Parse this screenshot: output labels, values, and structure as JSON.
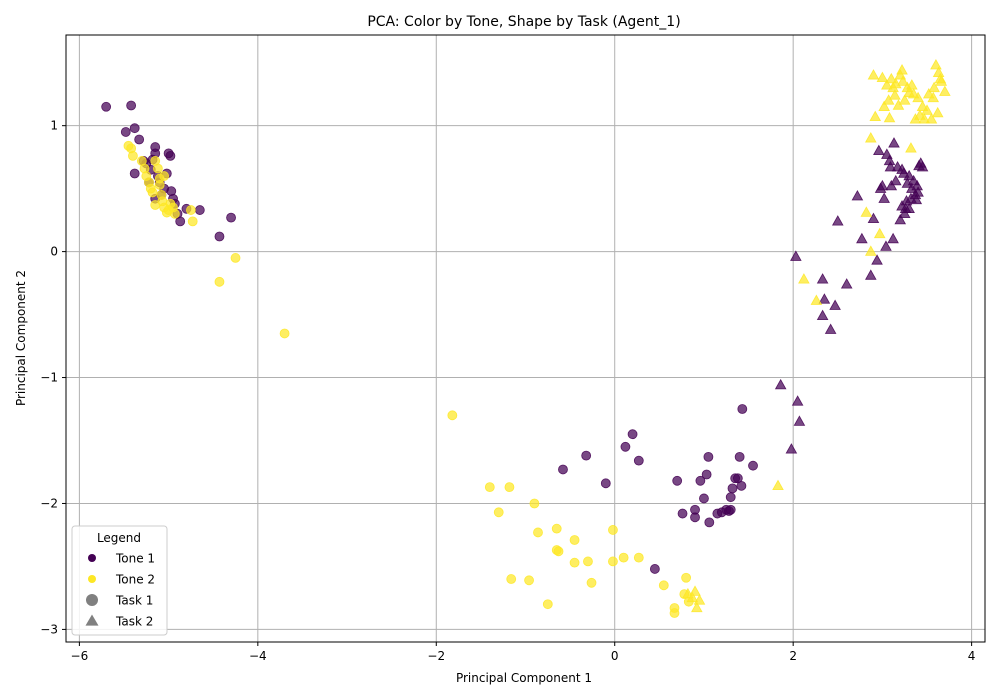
{
  "chart_data": {
    "type": "scatter",
    "title": "PCA: Color by Tone, Shape by Task (Agent_1)",
    "xlabel": "Principal Component 1",
    "ylabel": "Principal Component 2",
    "xlim": [
      -6.15,
      4.15
    ],
    "ylim": [
      -3.1,
      1.72
    ],
    "xticks": [
      -6,
      -4,
      -2,
      0,
      2,
      4
    ],
    "yticks": [
      -3,
      -2,
      -1,
      0,
      1
    ],
    "xtick_labels": [
      "−6",
      "−4",
      "−2",
      "0",
      "2",
      "4"
    ],
    "ytick_labels": [
      "−3",
      "−2",
      "−1",
      "0",
      "1"
    ],
    "grid": true,
    "legend_placement": "lower-left",
    "colors": {
      "tone1": "#440154",
      "tone2": "#fde725",
      "neutral": "#808080"
    },
    "legend": {
      "title": "Legend",
      "entries": [
        {
          "label": "Tone 1",
          "marker": "circle",
          "color": "#440154"
        },
        {
          "label": "Tone 2",
          "marker": "circle",
          "color": "#fde725"
        },
        {
          "label": "Task 1",
          "marker": "circle",
          "color": "#808080"
        },
        {
          "label": "Task 2",
          "marker": "triangle",
          "color": "#808080"
        }
      ]
    },
    "series": [
      {
        "tone": 1,
        "task": 1,
        "marker": "circle",
        "points": [
          [
            -5.7,
            1.15
          ],
          [
            -5.42,
            1.16
          ],
          [
            -5.48,
            0.95
          ],
          [
            -5.38,
            0.98
          ],
          [
            -5.33,
            0.89
          ],
          [
            -5.38,
            0.62
          ],
          [
            -5.25,
            0.7
          ],
          [
            -5.2,
            0.65
          ],
          [
            -5.15,
            0.83
          ],
          [
            -5.15,
            0.78
          ],
          [
            -5.18,
            0.73
          ],
          [
            -5.12,
            0.6
          ],
          [
            -5.1,
            0.55
          ],
          [
            -5.05,
            0.5
          ],
          [
            -5.02,
            0.62
          ],
          [
            -5.0,
            0.78
          ],
          [
            -4.98,
            0.76
          ],
          [
            -4.97,
            0.48
          ],
          [
            -4.95,
            0.42
          ],
          [
            -4.93,
            0.38
          ],
          [
            -4.9,
            0.3
          ],
          [
            -4.87,
            0.24
          ],
          [
            -4.8,
            0.34
          ],
          [
            -4.65,
            0.33
          ],
          [
            -4.43,
            0.12
          ],
          [
            -4.3,
            0.27
          ],
          [
            -5.22,
            0.55
          ],
          [
            -5.08,
            0.45
          ],
          [
            -5.15,
            0.42
          ],
          [
            -5.28,
            0.72
          ],
          [
            -0.58,
            -1.73
          ],
          [
            -0.32,
            -1.62
          ],
          [
            -0.1,
            -1.84
          ],
          [
            0.12,
            -1.55
          ],
          [
            0.2,
            -1.45
          ],
          [
            0.27,
            -1.66
          ],
          [
            0.45,
            -2.52
          ],
          [
            0.7,
            -1.82
          ],
          [
            0.76,
            -2.08
          ],
          [
            0.9,
            -2.05
          ],
          [
            0.9,
            -2.11
          ],
          [
            0.96,
            -1.82
          ],
          [
            1.0,
            -1.96
          ],
          [
            1.03,
            -1.77
          ],
          [
            1.05,
            -1.63
          ],
          [
            1.06,
            -2.15
          ],
          [
            1.15,
            -2.08
          ],
          [
            1.2,
            -2.07
          ],
          [
            1.25,
            -2.05
          ],
          [
            1.28,
            -2.06
          ],
          [
            1.3,
            -2.05
          ],
          [
            1.3,
            -1.95
          ],
          [
            1.32,
            -1.88
          ],
          [
            1.35,
            -1.8
          ],
          [
            1.38,
            -1.8
          ],
          [
            1.4,
            -1.63
          ],
          [
            1.42,
            -1.86
          ],
          [
            1.43,
            -1.25
          ],
          [
            1.55,
            -1.7
          ]
        ]
      },
      {
        "tone": 2,
        "task": 1,
        "marker": "circle",
        "points": [
          [
            -5.45,
            0.84
          ],
          [
            -5.42,
            0.82
          ],
          [
            -5.4,
            0.76
          ],
          [
            -5.3,
            0.72
          ],
          [
            -5.27,
            0.66
          ],
          [
            -5.25,
            0.6
          ],
          [
            -5.22,
            0.55
          ],
          [
            -5.2,
            0.5
          ],
          [
            -5.18,
            0.47
          ],
          [
            -5.15,
            0.72
          ],
          [
            -5.12,
            0.66
          ],
          [
            -5.1,
            0.58
          ],
          [
            -5.1,
            0.53
          ],
          [
            -5.08,
            0.45
          ],
          [
            -5.07,
            0.4
          ],
          [
            -5.05,
            0.35
          ],
          [
            -5.02,
            0.31
          ],
          [
            -5.0,
            0.33
          ],
          [
            -4.98,
            0.38
          ],
          [
            -4.95,
            0.35
          ],
          [
            -4.93,
            0.3
          ],
          [
            -5.15,
            0.37
          ],
          [
            -5.05,
            0.6
          ],
          [
            -4.75,
            0.33
          ],
          [
            -4.73,
            0.24
          ],
          [
            -4.43,
            -0.24
          ],
          [
            -4.25,
            -0.05
          ],
          [
            -3.7,
            -0.65
          ],
          [
            -1.82,
            -1.3
          ],
          [
            -1.4,
            -1.87
          ],
          [
            -1.3,
            -2.07
          ],
          [
            -1.18,
            -1.87
          ],
          [
            -1.16,
            -2.6
          ],
          [
            -0.96,
            -2.61
          ],
          [
            -0.9,
            -2.0
          ],
          [
            -0.86,
            -2.23
          ],
          [
            -0.75,
            -2.8
          ],
          [
            -0.65,
            -2.2
          ],
          [
            -0.65,
            -2.37
          ],
          [
            -0.63,
            -2.38
          ],
          [
            -0.45,
            -2.29
          ],
          [
            -0.45,
            -2.47
          ],
          [
            -0.3,
            -2.46
          ],
          [
            -0.26,
            -2.63
          ],
          [
            -0.02,
            -2.21
          ],
          [
            -0.02,
            -2.46
          ],
          [
            0.1,
            -2.43
          ],
          [
            0.27,
            -2.43
          ],
          [
            0.55,
            -2.65
          ],
          [
            0.67,
            -2.83
          ],
          [
            0.67,
            -2.87
          ],
          [
            0.8,
            -2.59
          ],
          [
            0.78,
            -2.72
          ],
          [
            0.83,
            -2.78
          ]
        ]
      },
      {
        "tone": 1,
        "task": 2,
        "marker": "triangle",
        "points": [
          [
            1.86,
            -1.06
          ],
          [
            1.98,
            -1.57
          ],
          [
            2.03,
            -0.04
          ],
          [
            2.05,
            -1.19
          ],
          [
            2.07,
            -1.35
          ],
          [
            2.33,
            -0.22
          ],
          [
            2.33,
            -0.51
          ],
          [
            2.35,
            -0.38
          ],
          [
            2.42,
            -0.62
          ],
          [
            2.47,
            -0.43
          ],
          [
            2.5,
            0.24
          ],
          [
            2.6,
            -0.26
          ],
          [
            2.72,
            0.44
          ],
          [
            2.77,
            0.1
          ],
          [
            2.87,
            -0.19
          ],
          [
            2.9,
            0.26
          ],
          [
            2.94,
            -0.07
          ],
          [
            2.96,
            0.8
          ],
          [
            2.98,
            0.5
          ],
          [
            3.0,
            0.52
          ],
          [
            3.02,
            0.42
          ],
          [
            3.04,
            0.04
          ],
          [
            3.05,
            0.77
          ],
          [
            3.08,
            0.72
          ],
          [
            3.09,
            0.67
          ],
          [
            3.1,
            0.52
          ],
          [
            3.12,
            0.1
          ],
          [
            3.13,
            0.86
          ],
          [
            3.15,
            0.56
          ],
          [
            3.17,
            0.67
          ],
          [
            3.2,
            0.25
          ],
          [
            3.22,
            0.65
          ],
          [
            3.22,
            0.36
          ],
          [
            3.24,
            0.62
          ],
          [
            3.25,
            0.3
          ],
          [
            3.26,
            0.34
          ],
          [
            3.27,
            0.4
          ],
          [
            3.28,
            0.54
          ],
          [
            3.3,
            0.6
          ],
          [
            3.3,
            0.34
          ],
          [
            3.32,
            0.42
          ],
          [
            3.33,
            0.5
          ],
          [
            3.35,
            0.56
          ],
          [
            3.37,
            0.45
          ],
          [
            3.38,
            0.41
          ],
          [
            3.39,
            0.52
          ],
          [
            3.4,
            0.47
          ],
          [
            3.41,
            0.68
          ],
          [
            3.43,
            0.7
          ],
          [
            3.45,
            0.67
          ]
        ]
      },
      {
        "tone": 2,
        "task": 2,
        "marker": "triangle",
        "points": [
          [
            1.83,
            -1.86
          ],
          [
            2.12,
            -0.22
          ],
          [
            2.26,
            -0.39
          ],
          [
            2.82,
            0.31
          ],
          [
            2.87,
            0.0
          ],
          [
            2.87,
            0.9
          ],
          [
            2.9,
            1.4
          ],
          [
            2.92,
            1.07
          ],
          [
            2.97,
            0.14
          ],
          [
            3.0,
            1.38
          ],
          [
            3.02,
            1.15
          ],
          [
            3.05,
            1.32
          ],
          [
            3.07,
            1.2
          ],
          [
            3.08,
            1.06
          ],
          [
            3.1,
            1.37
          ],
          [
            3.12,
            1.3
          ],
          [
            3.14,
            1.24
          ],
          [
            3.15,
            1.33
          ],
          [
            3.18,
            1.16
          ],
          [
            3.2,
            1.4
          ],
          [
            3.22,
            1.44
          ],
          [
            3.23,
            1.35
          ],
          [
            3.25,
            1.2
          ],
          [
            3.28,
            1.3
          ],
          [
            3.3,
            1.26
          ],
          [
            3.32,
            0.82
          ],
          [
            3.33,
            1.32
          ],
          [
            3.35,
            1.25
          ],
          [
            3.37,
            1.05
          ],
          [
            3.4,
            1.22
          ],
          [
            3.42,
            1.08
          ],
          [
            3.45,
            1.15
          ],
          [
            3.47,
            1.05
          ],
          [
            3.5,
            1.12
          ],
          [
            3.52,
            1.25
          ],
          [
            3.55,
            1.05
          ],
          [
            3.57,
            1.22
          ],
          [
            3.58,
            1.3
          ],
          [
            3.6,
            1.48
          ],
          [
            3.62,
            1.1
          ],
          [
            3.63,
            1.42
          ],
          [
            3.65,
            1.37
          ],
          [
            3.66,
            1.35
          ],
          [
            3.7,
            1.27
          ],
          [
            0.82,
            -2.72
          ],
          [
            0.87,
            -2.75
          ],
          [
            0.9,
            -2.7
          ],
          [
            0.92,
            -2.83
          ],
          [
            0.95,
            -2.77
          ]
        ]
      }
    ]
  }
}
